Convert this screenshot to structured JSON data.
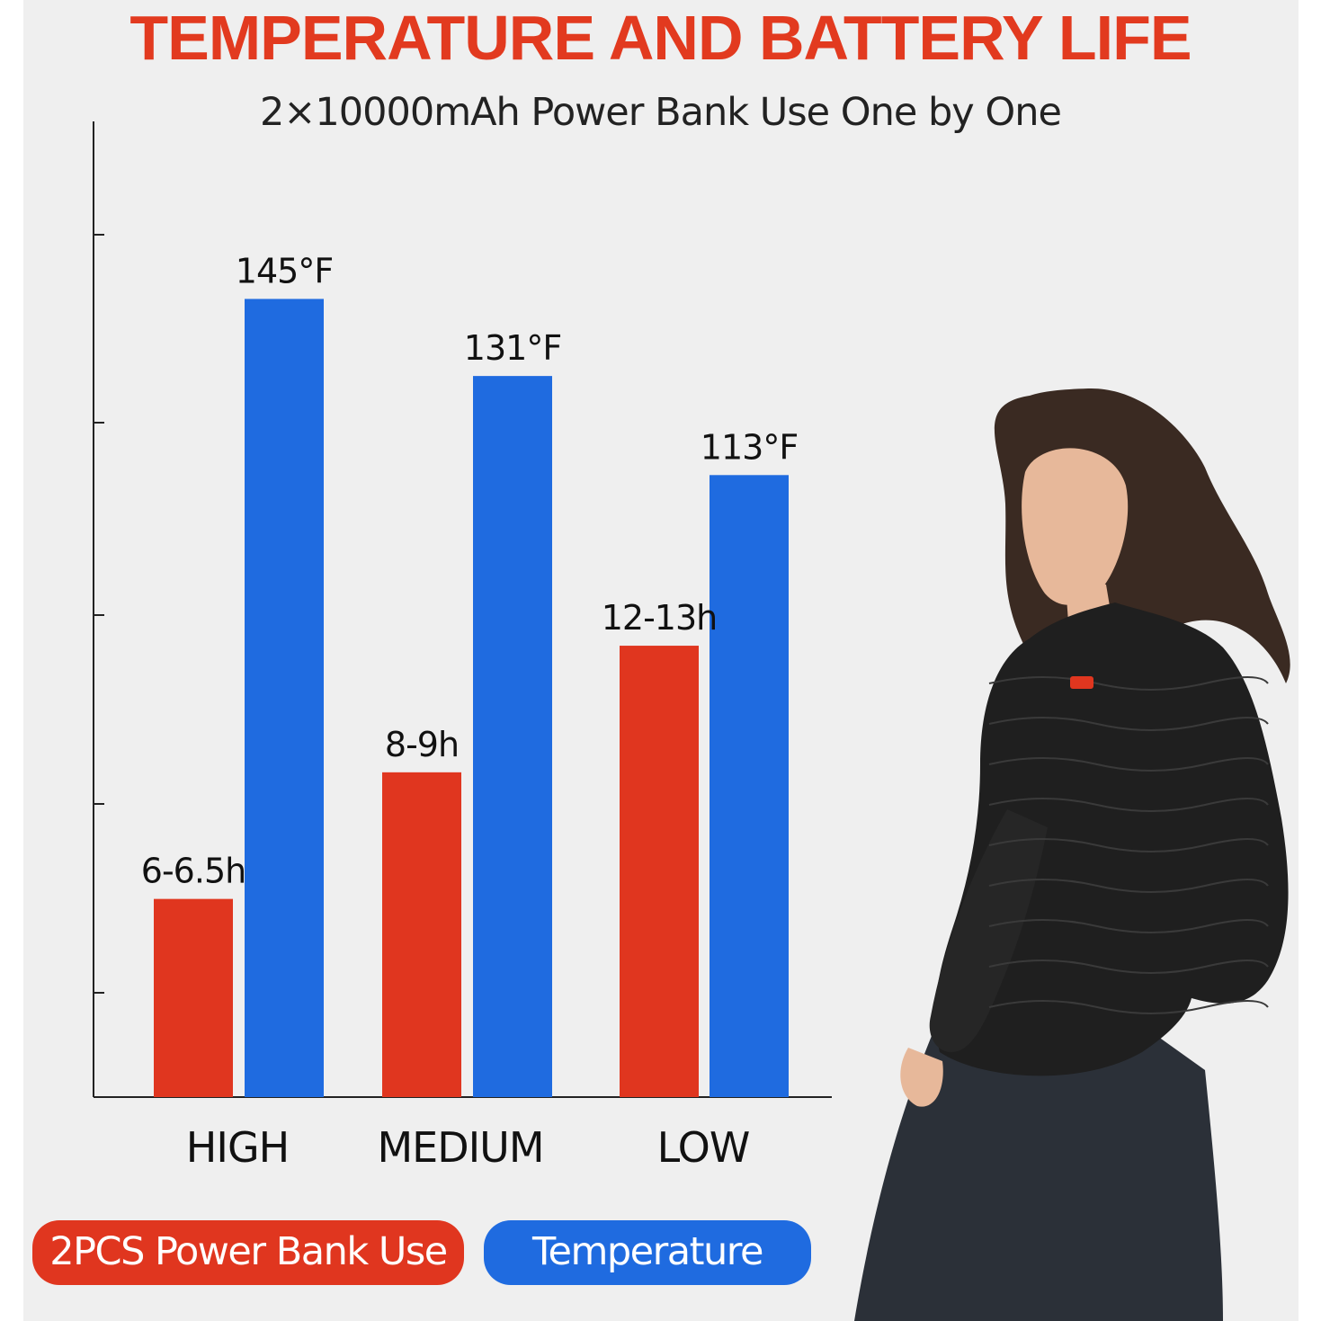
{
  "header": {
    "title": "TEMPERATURE AND BATTERY LIFE",
    "subtitle": "2×10000mAh Power Bank Use One by One"
  },
  "colors": {
    "title": "#e23a1f",
    "battery_series": "#e0361f",
    "temperature_series": "#1f6be0",
    "axis": "#222222",
    "panel_bg": "#efefef",
    "jacket": "#1f1f1f",
    "hair": "#3a2a22",
    "skin": "#e7b89a",
    "jeans": "#2b3038"
  },
  "chart_data": {
    "type": "bar",
    "title": "TEMPERATURE AND BATTERY LIFE",
    "subtitle": "2×10000mAh Power Bank Use One by One",
    "categories": [
      "HIGH",
      "MEDIUM",
      "LOW"
    ],
    "ylim": [
      0,
      165
    ],
    "grid": false,
    "legend_position": "bottom-left",
    "series": [
      {
        "name": "2PCS Power Bank Use",
        "values": [
          36,
          59,
          82
        ],
        "labels": [
          "6-6.5h",
          "8-9h",
          "12-13h"
        ]
      },
      {
        "name": "Temperature",
        "values": [
          145,
          131,
          113
        ],
        "labels": [
          "145°F",
          "131°F",
          "113°F"
        ]
      }
    ]
  },
  "illustration": {
    "subject": "model-wearing-black-heated-puffer-jacket"
  }
}
